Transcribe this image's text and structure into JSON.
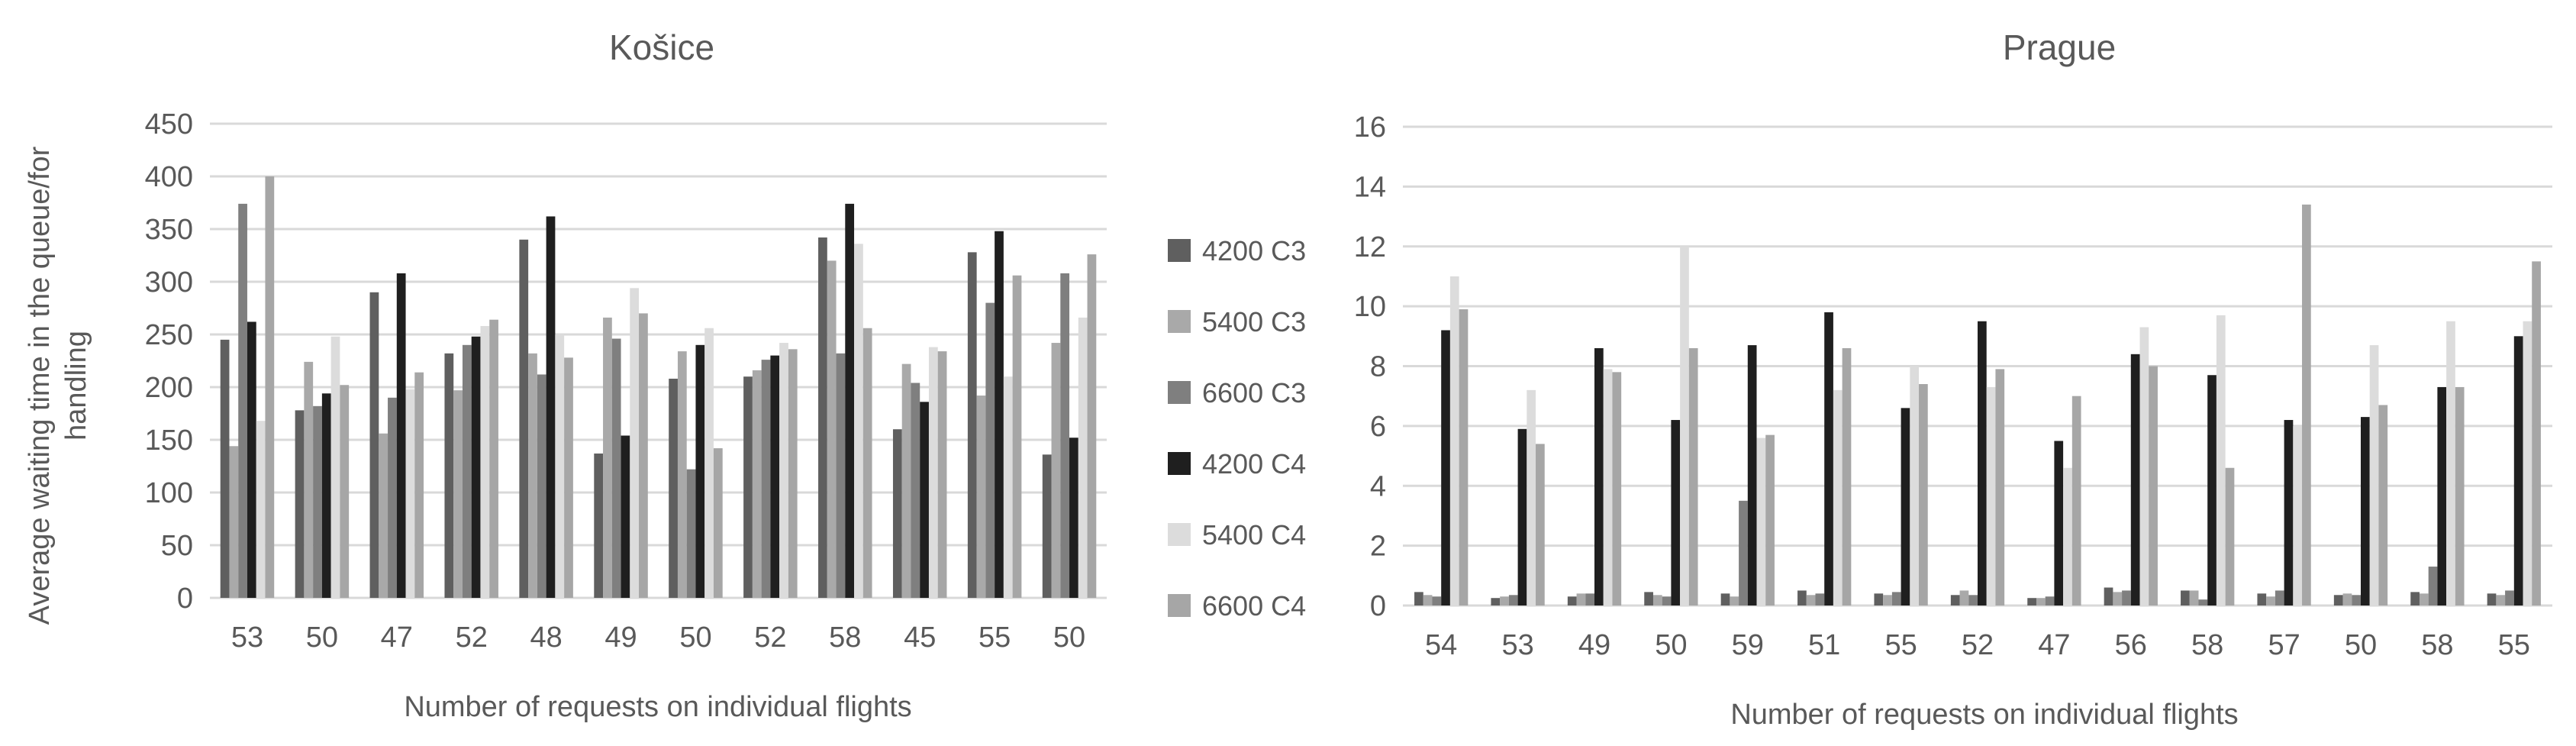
{
  "legend": {
    "entries": [
      "4200 C3",
      "5400 C3",
      "6600 C3",
      "4200 C4",
      "5400 C4",
      "6600 C4"
    ],
    "colors": [
      "#5f5f5f",
      "#a9a9a9",
      "#7f7f7f",
      "#1f1f1f",
      "#dcdcdc",
      "#a6a6a6"
    ]
  },
  "chart_data": [
    {
      "type": "bar",
      "title": "Košice",
      "xlabel": "Number of requests on individual flights",
      "ylabel": "Average waiting time in the queue/for handling",
      "ylim": [
        0,
        450
      ],
      "yticks": [
        0,
        50,
        100,
        150,
        200,
        250,
        300,
        350,
        400,
        450
      ],
      "grid": true,
      "legend_position": "right",
      "categories": [
        "53",
        "50",
        "47",
        "52",
        "48",
        "49",
        "50",
        "52",
        "58",
        "45",
        "55",
        "50"
      ],
      "series": [
        {
          "name": "4200 C3",
          "values": [
            245,
            178,
            290,
            232,
            340,
            137,
            208,
            210,
            342,
            160,
            328,
            136
          ]
        },
        {
          "name": "5400 C3",
          "values": [
            144,
            224,
            156,
            197,
            232,
            266,
            234,
            216,
            320,
            222,
            192,
            242
          ]
        },
        {
          "name": "6600 C3",
          "values": [
            374,
            182,
            190,
            240,
            212,
            246,
            122,
            226,
            232,
            204,
            280,
            308
          ]
        },
        {
          "name": "4200 C4",
          "values": [
            262,
            194,
            308,
            248,
            362,
            154,
            240,
            230,
            374,
            186,
            348,
            152
          ]
        },
        {
          "name": "5400 C4",
          "values": [
            168,
            248,
            198,
            258,
            250,
            294,
            256,
            242,
            336,
            238,
            210,
            266
          ]
        },
        {
          "name": "6600 C4",
          "values": [
            400,
            202,
            214,
            264,
            228,
            270,
            142,
            236,
            256,
            234,
            306,
            326
          ]
        }
      ]
    },
    {
      "type": "bar",
      "title": "Prague",
      "xlabel": "Number of requests on individual flights",
      "ylabel": "",
      "ylim": [
        0,
        16
      ],
      "yticks": [
        0,
        2,
        4,
        6,
        8,
        10,
        12,
        14,
        16
      ],
      "grid": true,
      "categories": [
        "54",
        "53",
        "49",
        "50",
        "59",
        "51",
        "55",
        "52",
        "47",
        "56",
        "58",
        "57",
        "50",
        "58",
        "55"
      ],
      "series": [
        {
          "name": "4200 C3",
          "values": [
            0.45,
            0.25,
            0.3,
            0.45,
            0.4,
            0.5,
            0.4,
            0.35,
            0.25,
            0.6,
            0.5,
            0.4,
            0.35,
            0.45,
            0.4
          ]
        },
        {
          "name": "5400 C3",
          "values": [
            0.35,
            0.3,
            0.4,
            0.35,
            0.3,
            0.35,
            0.35,
            0.5,
            0.25,
            0.45,
            0.5,
            0.3,
            0.4,
            0.4,
            0.35
          ]
        },
        {
          "name": "6600 C3",
          "values": [
            0.3,
            0.35,
            0.4,
            0.3,
            3.5,
            0.4,
            0.45,
            0.35,
            0.3,
            0.5,
            0.2,
            0.5,
            0.35,
            1.3,
            0.5
          ]
        },
        {
          "name": "4200 C4",
          "values": [
            9.2,
            5.9,
            8.6,
            6.2,
            8.7,
            9.8,
            6.6,
            9.5,
            5.5,
            8.4,
            7.7,
            6.2,
            6.3,
            7.3,
            9.0
          ]
        },
        {
          "name": "5400 C4",
          "values": [
            11.0,
            7.2,
            7.9,
            12.0,
            5.6,
            7.2,
            8.0,
            7.3,
            4.6,
            9.3,
            9.7,
            6.0,
            8.7,
            9.5,
            9.5
          ]
        },
        {
          "name": "6600 C4",
          "values": [
            9.9,
            5.4,
            7.8,
            8.6,
            5.7,
            8.6,
            7.4,
            7.9,
            7.0,
            8.0,
            4.6,
            13.4,
            6.7,
            7.3,
            11.5
          ]
        }
      ]
    }
  ]
}
